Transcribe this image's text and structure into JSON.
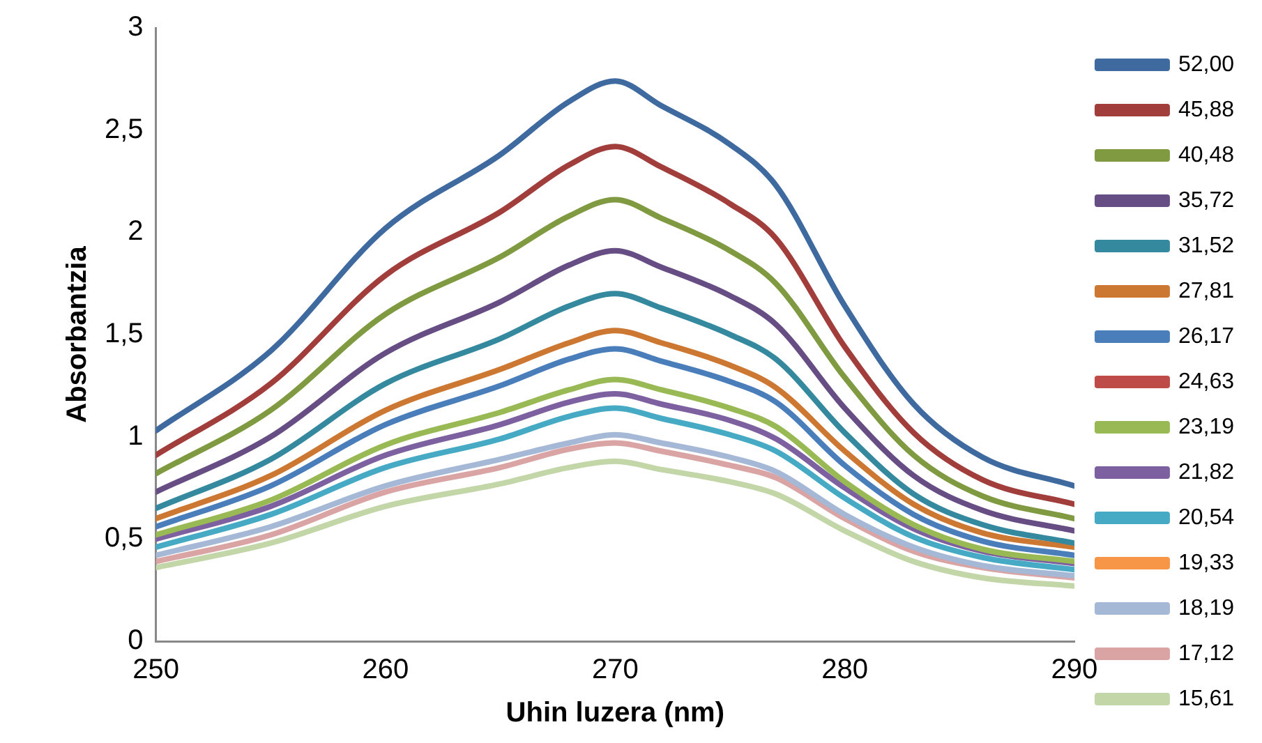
{
  "chart_data": {
    "type": "line",
    "xlabel": "Uhin luzera (nm)",
    "ylabel": "Absorbantzia",
    "x": [
      250,
      255,
      260,
      265,
      268,
      270,
      272,
      275,
      277,
      280,
      283,
      286,
      290
    ],
    "xlim": [
      250,
      290
    ],
    "xticks": [
      250,
      260,
      270,
      280,
      290
    ],
    "ylim": [
      0,
      3
    ],
    "yticks": [
      0,
      {
        "value": 0.5,
        "label": "0,5"
      },
      1,
      {
        "value": 1.5,
        "label": "1,5"
      },
      2,
      {
        "value": 2.5,
        "label": "2,5"
      },
      3
    ],
    "grid": false,
    "legend": "right",
    "marker": "none",
    "line_style": "solid",
    "series": [
      {
        "name": "52,00",
        "color": "#3e6aa0",
        "values": [
          1.03,
          1.42,
          2.02,
          2.38,
          2.64,
          2.74,
          2.62,
          2.43,
          2.23,
          1.64,
          1.16,
          0.9,
          0.76
        ]
      },
      {
        "name": "45,88",
        "color": "#a13e3b",
        "values": [
          0.91,
          1.26,
          1.79,
          2.1,
          2.33,
          2.42,
          2.32,
          2.14,
          1.97,
          1.44,
          1.02,
          0.79,
          0.67
        ]
      },
      {
        "name": "40,48",
        "color": "#7f9a41",
        "values": [
          0.82,
          1.13,
          1.6,
          1.88,
          2.08,
          2.16,
          2.07,
          1.91,
          1.75,
          1.29,
          0.91,
          0.71,
          0.6
        ]
      },
      {
        "name": "35,72",
        "color": "#664d83",
        "values": [
          0.73,
          1.0,
          1.41,
          1.66,
          1.84,
          1.91,
          1.83,
          1.69,
          1.55,
          1.14,
          0.81,
          0.64,
          0.54
        ]
      },
      {
        "name": "31,52",
        "color": "#35899f",
        "values": [
          0.65,
          0.89,
          1.26,
          1.48,
          1.64,
          1.7,
          1.63,
          1.5,
          1.38,
          1.02,
          0.72,
          0.57,
          0.48
        ]
      },
      {
        "name": "27,81",
        "color": "#cc7832",
        "values": [
          0.6,
          0.81,
          1.13,
          1.33,
          1.46,
          1.52,
          1.46,
          1.35,
          1.24,
          0.93,
          0.67,
          0.53,
          0.46
        ]
      },
      {
        "name": "26,17",
        "color": "#4a7ebb",
        "values": [
          0.56,
          0.76,
          1.06,
          1.25,
          1.38,
          1.43,
          1.37,
          1.27,
          1.17,
          0.86,
          0.62,
          0.49,
          0.42
        ]
      },
      {
        "name": "24,63",
        "color": "#be4b48",
        "values": [
          null,
          null,
          null,
          null,
          null,
          null,
          null,
          null,
          null,
          null,
          null,
          null,
          null
        ]
      },
      {
        "name": "23,19",
        "color": "#98b954",
        "values": [
          0.52,
          0.69,
          0.96,
          1.12,
          1.23,
          1.28,
          1.23,
          1.14,
          1.05,
          0.78,
          0.57,
          0.45,
          0.39
        ]
      },
      {
        "name": "21,82",
        "color": "#7d60a0",
        "values": [
          0.5,
          0.66,
          0.91,
          1.06,
          1.17,
          1.21,
          1.16,
          1.08,
          0.99,
          0.75,
          0.55,
          0.44,
          0.38
        ]
      },
      {
        "name": "20,54",
        "color": "#46aac5",
        "values": [
          0.46,
          0.62,
          0.85,
          0.99,
          1.1,
          1.14,
          1.09,
          1.01,
          0.93,
          0.7,
          0.51,
          0.41,
          0.35
        ]
      },
      {
        "name": "19,33",
        "color": "#f79646",
        "values": [
          null,
          null,
          null,
          null,
          null,
          null,
          null,
          null,
          null,
          null,
          null,
          null,
          null
        ]
      },
      {
        "name": "18,19",
        "color": "#a5b8d6",
        "values": [
          0.42,
          0.56,
          0.76,
          0.89,
          0.97,
          1.01,
          0.97,
          0.9,
          0.83,
          0.62,
          0.46,
          0.37,
          0.32
        ]
      },
      {
        "name": "17,12",
        "color": "#d9a4a3",
        "values": [
          0.39,
          0.52,
          0.73,
          0.85,
          0.94,
          0.97,
          0.93,
          0.86,
          0.8,
          0.6,
          0.44,
          0.36,
          0.31
        ]
      },
      {
        "name": "15,61",
        "color": "#c3d6a8",
        "values": [
          0.36,
          0.48,
          0.66,
          0.77,
          0.85,
          0.88,
          0.84,
          0.78,
          0.72,
          0.54,
          0.39,
          0.31,
          0.27
        ]
      }
    ]
  }
}
